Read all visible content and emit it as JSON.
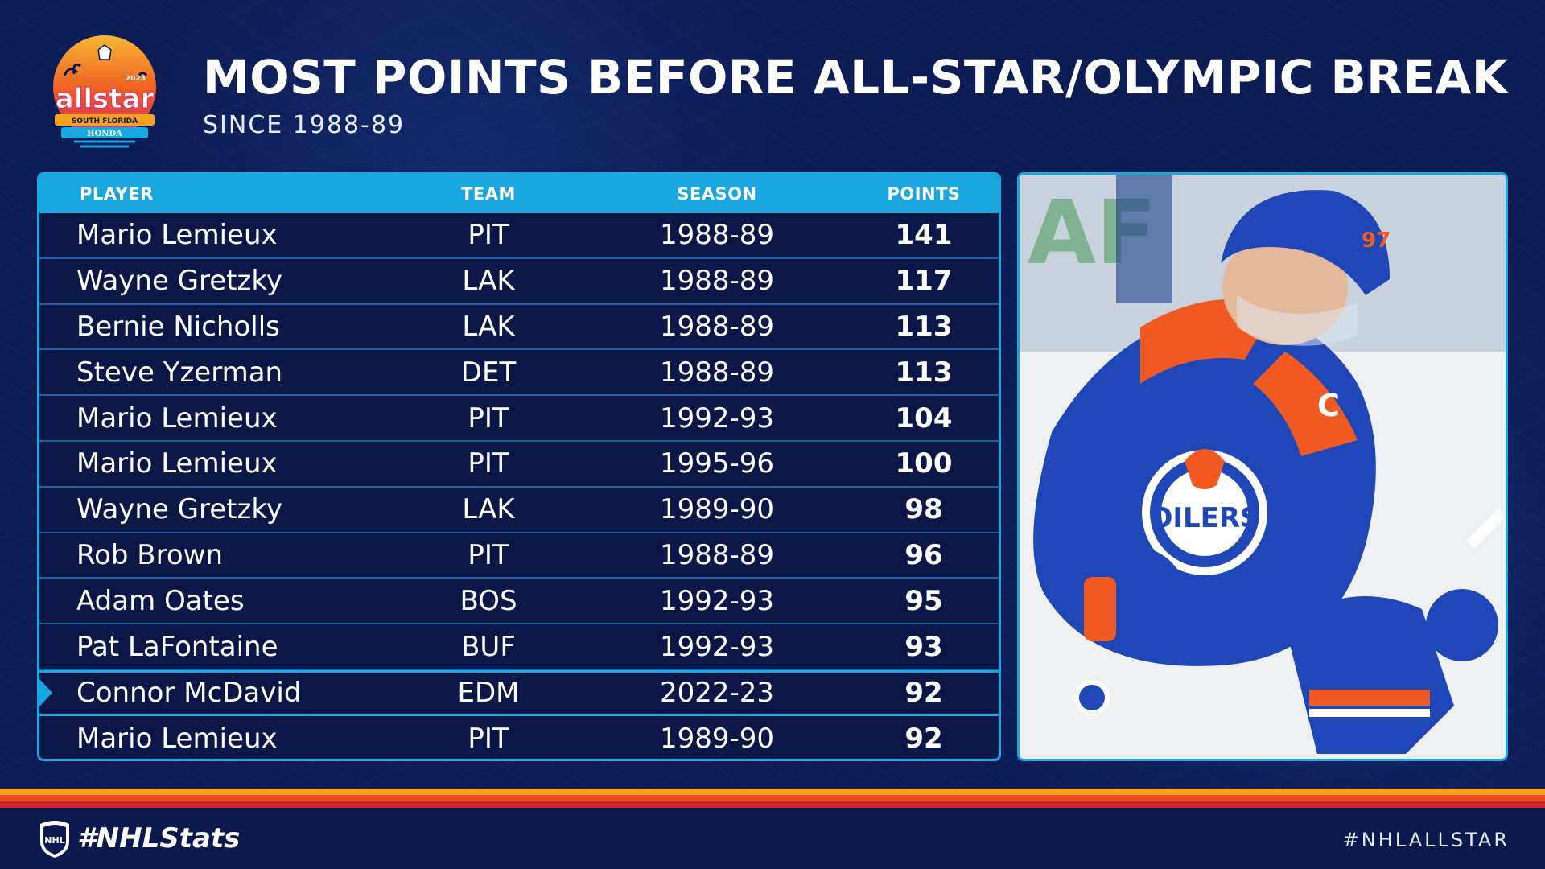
{
  "header": {
    "title": "MOST POINTS BEFORE ALL-STAR/OLYMPIC BREAK",
    "subtitle": "SINCE 1988-89"
  },
  "logo": {
    "text_main": "allstar",
    "year": "2023",
    "location": "SOUTH FLORIDA",
    "sponsor": "HONDA",
    "league": "NHL"
  },
  "table": {
    "columns": [
      "PLAYER",
      "TEAM",
      "SEASON",
      "POINTS"
    ],
    "rows": [
      {
        "player": "Mario Lemieux",
        "team": "PIT",
        "season": "1988-89",
        "points": "141"
      },
      {
        "player": "Wayne Gretzky",
        "team": "LAK",
        "season": "1988-89",
        "points": "117"
      },
      {
        "player": "Bernie Nicholls",
        "team": "LAK",
        "season": "1988-89",
        "points": "113"
      },
      {
        "player": "Steve Yzerman",
        "team": "DET",
        "season": "1988-89",
        "points": "113"
      },
      {
        "player": "Mario Lemieux",
        "team": "PIT",
        "season": "1992-93",
        "points": "104"
      },
      {
        "player": "Mario Lemieux",
        "team": "PIT",
        "season": "1995-96",
        "points": "100"
      },
      {
        "player": "Wayne Gretzky",
        "team": "LAK",
        "season": "1989-90",
        "points": "98"
      },
      {
        "player": "Rob Brown",
        "team": "PIT",
        "season": "1988-89",
        "points": "96"
      },
      {
        "player": "Adam Oates",
        "team": "BOS",
        "season": "1992-93",
        "points": "95"
      },
      {
        "player": "Pat LaFontaine",
        "team": "BUF",
        "season": "1992-93",
        "points": "93"
      },
      {
        "player": "Connor McDavid",
        "team": "EDM",
        "season": "2022-23",
        "points": "92"
      },
      {
        "player": "Mario Lemieux",
        "team": "PIT",
        "season": "1989-90",
        "points": "92"
      }
    ],
    "highlighted_row_index": 10
  },
  "photo": {
    "subject": "hockey-player-celebrating",
    "jersey_text": "OILERS",
    "jersey_number": "97",
    "captain_mark": "C"
  },
  "footer": {
    "left_hashtag": "#NHLStats",
    "right_hashtag": "#NHLALLSTAR"
  },
  "colors": {
    "background": "#0c1c55",
    "accent": "#1aa6df",
    "stripe_orange": "#f6a21c",
    "stripe_red_orange": "#e94b22",
    "stripe_red": "#c8262b"
  }
}
